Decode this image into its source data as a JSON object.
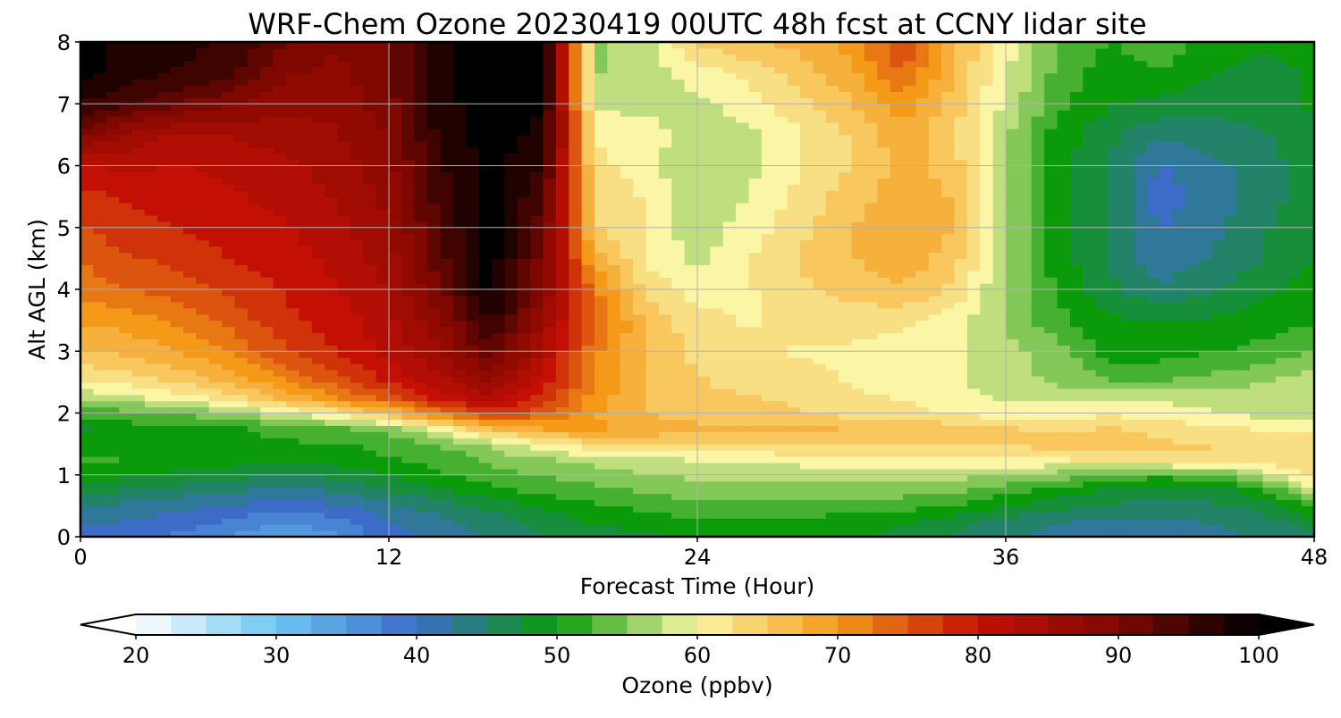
{
  "chart_data": {
    "type": "heatmap",
    "title": "WRF-Chem Ozone  20230419 00UTC 48h fcst at CCNY lidar site",
    "xlabel": "Forecast Time (Hour)",
    "ylabel": "Alt AGL (km)",
    "xlim": [
      0,
      48
    ],
    "ylim": [
      0,
      8
    ],
    "x_ticks": [
      "0",
      "12",
      "24",
      "36",
      "48"
    ],
    "y_ticks": [
      "0",
      "1",
      "2",
      "3",
      "4",
      "5",
      "6",
      "7",
      "8"
    ],
    "grid": true,
    "colorbar": {
      "label": "Ozone  (ppbv)",
      "min": 20,
      "max": 100,
      "ticks": [
        "20",
        "30",
        "40",
        "50",
        "60",
        "70",
        "80",
        "90",
        "100"
      ],
      "extend": "both",
      "colors": {
        "20": "#ffffff",
        "30": "#6ec6f2",
        "40": "#3c6cc8",
        "50": "#0a9a0a",
        "60": "#fbf6a6",
        "70": "#f49a18",
        "80": "#c41004",
        "90": "#7e0800",
        "100": "#000000"
      }
    },
    "x_hours": [
      0,
      2,
      4,
      6,
      8,
      10,
      12,
      14,
      16,
      18,
      20,
      22,
      24,
      26,
      28,
      30,
      32,
      34,
      36,
      38,
      40,
      42,
      44,
      46,
      48
    ],
    "z_km": [
      0,
      0.25,
      0.5,
      0.75,
      1,
      1.25,
      1.5,
      1.75,
      2,
      2.25,
      2.5,
      3,
      3.5,
      4,
      4.5,
      5,
      5.5,
      6,
      6.5,
      7,
      7.5,
      8
    ],
    "ozone_ppbv": [
      [
        40,
        40,
        38,
        36,
        33,
        36,
        40,
        42,
        44,
        46,
        47,
        48,
        49,
        50,
        50,
        49,
        48,
        46,
        44,
        43,
        42,
        42,
        43,
        44,
        46
      ],
      [
        42,
        41,
        40,
        38,
        36,
        38,
        41,
        43,
        45,
        47,
        49,
        50,
        51,
        51,
        51,
        50,
        49,
        47,
        45,
        44,
        43,
        43,
        44,
        45,
        48
      ],
      [
        44,
        43,
        42,
        41,
        40,
        41,
        43,
        45,
        47,
        49,
        51,
        52,
        53,
        53,
        53,
        52,
        52,
        51,
        49,
        47,
        46,
        45,
        46,
        47,
        52
      ],
      [
        47,
        46,
        45,
        44,
        43,
        44,
        46,
        48,
        50,
        52,
        53,
        54,
        55,
        55,
        55,
        55,
        55,
        54,
        52,
        50,
        48,
        47,
        47,
        51,
        58
      ],
      [
        50,
        49,
        48,
        47,
        46,
        47,
        49,
        51,
        53,
        54,
        55,
        56,
        57,
        57,
        57,
        57,
        57,
        57,
        56,
        55,
        53,
        52,
        53,
        57,
        63
      ],
      [
        52,
        51,
        50,
        50,
        49,
        50,
        51,
        52,
        54,
        56,
        57,
        58,
        59,
        59,
        60,
        60,
        60,
        60,
        61,
        61,
        62,
        63,
        63,
        63,
        63
      ],
      [
        50,
        51,
        51,
        51,
        51,
        51,
        52,
        54,
        57,
        61,
        63,
        64,
        64,
        64,
        64,
        64,
        64,
        64,
        64,
        65,
        65,
        64,
        64,
        63,
        63
      ],
      [
        48,
        50,
        51,
        51,
        52,
        53,
        55,
        60,
        66,
        69,
        69,
        68,
        67,
        67,
        67,
        66,
        66,
        65,
        64,
        63,
        64,
        63,
        62,
        61,
        60
      ],
      [
        52,
        53,
        54,
        56,
        59,
        62,
        66,
        73,
        78,
        74,
        69,
        66,
        65,
        65,
        64,
        63,
        62,
        61,
        60,
        60,
        61,
        60,
        59,
        58,
        58
      ],
      [
        57,
        58,
        60,
        63,
        67,
        71,
        75,
        80,
        83,
        78,
        70,
        66,
        64,
        64,
        63,
        62,
        61,
        60,
        58,
        58,
        58,
        58,
        58,
        58,
        58
      ],
      [
        61,
        62,
        64,
        67,
        71,
        75,
        79,
        83,
        86,
        80,
        71,
        66,
        64,
        63,
        62,
        61,
        60,
        59,
        57,
        56,
        54,
        54,
        55,
        56,
        58
      ],
      [
        66,
        67,
        69,
        72,
        76,
        79,
        82,
        86,
        93,
        83,
        72,
        66,
        63,
        62,
        61,
        61,
        60,
        59,
        57,
        55,
        50,
        50,
        51,
        52,
        54
      ],
      [
        69,
        70,
        72,
        75,
        78,
        80,
        83,
        88,
        97,
        86,
        74,
        66,
        62,
        61,
        62,
        62,
        62,
        60,
        56,
        52,
        49,
        49,
        49,
        50,
        51
      ],
      [
        72,
        74,
        75,
        77,
        79,
        81,
        84,
        91,
        100,
        89,
        72,
        63,
        60,
        61,
        63,
        65,
        66,
        63,
        56,
        51,
        47,
        44,
        46,
        48,
        50
      ],
      [
        74,
        76,
        77,
        79,
        80,
        82,
        85,
        93,
        100,
        90,
        68,
        61,
        58,
        61,
        64,
        66,
        68,
        65,
        56,
        50,
        46,
        42,
        44,
        46,
        49
      ],
      [
        76,
        78,
        79,
        80,
        81,
        83,
        86,
        94,
        100,
        92,
        64,
        61,
        57,
        60,
        63,
        66,
        69,
        66,
        56,
        50,
        46,
        41,
        43,
        46,
        48
      ],
      [
        78,
        79,
        80,
        81,
        82,
        84,
        87,
        95,
        100,
        94,
        63,
        61,
        56,
        59,
        62,
        65,
        68,
        66,
        57,
        50,
        46,
        40,
        42,
        45,
        48
      ],
      [
        81,
        82,
        81,
        82,
        83,
        85,
        88,
        96,
        100,
        96,
        62,
        60,
        56,
        58,
        61,
        64,
        67,
        65,
        57,
        50,
        46,
        41,
        43,
        45,
        48
      ],
      [
        90,
        85,
        83,
        84,
        85,
        86,
        89,
        97,
        100,
        98,
        61,
        60,
        57,
        58,
        61,
        64,
        68,
        64,
        57,
        50,
        47,
        44,
        45,
        46,
        48
      ],
      [
        96,
        94,
        91,
        89,
        87,
        87,
        90,
        98,
        100,
        99,
        58,
        58,
        58,
        60,
        63,
        66,
        70,
        65,
        58,
        52,
        49,
        48,
        47,
        48,
        49
      ],
      [
        100,
        97,
        96,
        94,
        89,
        88,
        91,
        98,
        100,
        100,
        56,
        57,
        60,
        62,
        65,
        68,
        74,
        66,
        59,
        53,
        50,
        51,
        49,
        48,
        49
      ],
      [
        100,
        98,
        97,
        96,
        91,
        89,
        91,
        98,
        100,
        100,
        56,
        58,
        64,
        66,
        67,
        70,
        76,
        67,
        60,
        54,
        51,
        53,
        50,
        49,
        50
      ]
    ]
  }
}
